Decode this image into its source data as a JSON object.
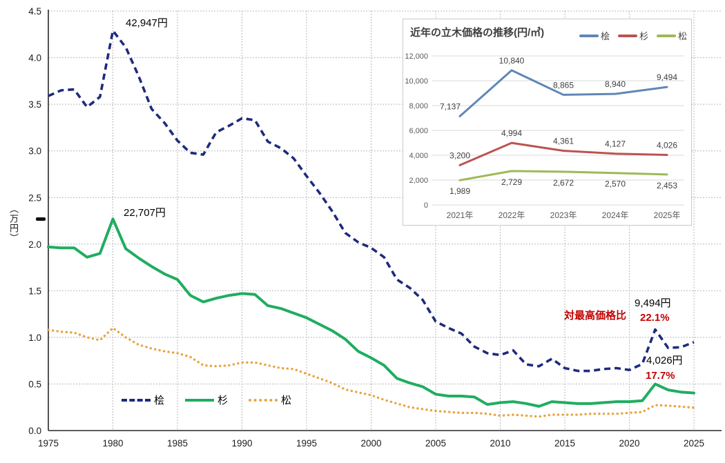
{
  "chart_data": [
    {
      "type": "line",
      "title": "",
      "ylabel": "（万円）",
      "xlabel": "",
      "ylim": [
        0,
        4.5
      ],
      "xlim": [
        1975,
        2025
      ],
      "grid": "dotted",
      "legend_position": "bottom-left-inside",
      "x_ticks": [
        "1975",
        "1980",
        "1985",
        "1990",
        "1995",
        "2000",
        "2005",
        "2010",
        "2015",
        "2020",
        "2025"
      ],
      "y_ticks": [
        "0.0",
        "0.5",
        "1.0",
        "1.5",
        "2.0",
        "2.5",
        "3.0",
        "3.5",
        "4.0",
        "4.5"
      ],
      "x_start_year": 1975,
      "series": [
        {
          "name": "桧",
          "style": "dashed",
          "color": "#1e2a7e",
          "values": [
            3.59,
            3.65,
            3.66,
            3.47,
            3.58,
            4.29,
            4.11,
            3.8,
            3.45,
            3.3,
            3.11,
            2.98,
            2.96,
            3.2,
            3.27,
            3.35,
            3.33,
            3.1,
            3.03,
            2.92,
            2.73,
            2.55,
            2.35,
            2.12,
            2.02,
            1.96,
            1.86,
            1.62,
            1.53,
            1.4,
            1.17,
            1.1,
            1.04,
            0.9,
            0.83,
            0.81,
            0.86,
            0.71,
            0.69,
            0.77,
            0.67,
            0.64,
            0.64,
            0.66,
            0.67,
            0.65,
            0.714,
            1.084,
            0.887,
            0.894,
            0.949
          ]
        },
        {
          "name": "杉",
          "style": "solid",
          "color": "#1fad60",
          "values": [
            1.97,
            1.96,
            1.96,
            1.86,
            1.9,
            2.27,
            1.95,
            1.85,
            1.76,
            1.68,
            1.62,
            1.45,
            1.38,
            1.42,
            1.45,
            1.47,
            1.46,
            1.34,
            1.31,
            1.26,
            1.21,
            1.14,
            1.07,
            0.98,
            0.85,
            0.78,
            0.7,
            0.56,
            0.51,
            0.47,
            0.39,
            0.37,
            0.37,
            0.36,
            0.28,
            0.3,
            0.31,
            0.29,
            0.26,
            0.31,
            0.3,
            0.29,
            0.29,
            0.3,
            0.31,
            0.31,
            0.32,
            0.499,
            0.436,
            0.413,
            0.403
          ]
        },
        {
          "name": "松",
          "style": "dotted",
          "color": "#e8a33d",
          "values": [
            1.08,
            1.06,
            1.05,
            1.0,
            0.97,
            1.1,
            1.0,
            0.92,
            0.88,
            0.85,
            0.83,
            0.79,
            0.7,
            0.69,
            0.7,
            0.73,
            0.73,
            0.7,
            0.67,
            0.66,
            0.61,
            0.56,
            0.51,
            0.44,
            0.41,
            0.38,
            0.33,
            0.29,
            0.25,
            0.23,
            0.21,
            0.2,
            0.19,
            0.19,
            0.18,
            0.16,
            0.17,
            0.16,
            0.15,
            0.17,
            0.17,
            0.17,
            0.18,
            0.18,
            0.18,
            0.19,
            0.199,
            0.273,
            0.267,
            0.257,
            0.245
          ]
        }
      ],
      "annotations": {
        "hinoki_peak": "42,947円",
        "sugi_peak": "22,707円",
        "ratio_header": "対最高価格比",
        "hinoki_now": "9,494円",
        "hinoki_ratio": "22.1%",
        "sugi_now": "4,026円",
        "sugi_ratio": "17.7%",
        "ratio_color": "#c00000"
      }
    },
    {
      "type": "line",
      "title": "近年の立木価格の推移(円/㎥)",
      "categories": [
        "2021年",
        "2022年",
        "2023年",
        "2024年",
        "2025年"
      ],
      "ylim": [
        0,
        12000
      ],
      "y_ticks": [
        "0",
        "2,000",
        "4,000",
        "6,000",
        "8,000",
        "10,000",
        "12,000"
      ],
      "grid": "horizontal-solid",
      "legend_position": "top-right",
      "series": [
        {
          "name": "桧",
          "color": "#5f87b5",
          "label_side": "above",
          "values": [
            7137,
            10840,
            8865,
            8940,
            9494
          ],
          "labels": [
            "7,137",
            "10,840",
            "8,865",
            "8,940",
            "9,494"
          ]
        },
        {
          "name": "杉",
          "color": "#bc5350",
          "label_side": "above",
          "values": [
            3200,
            4994,
            4361,
            4127,
            4026
          ],
          "labels": [
            "3,200",
            "4,994",
            "4,361",
            "4,127",
            "4,026"
          ]
        },
        {
          "name": "松",
          "color": "#9dba55",
          "label_side": "below",
          "values": [
            1989,
            2729,
            2672,
            2570,
            2453
          ],
          "labels": [
            "1,989",
            "2,729",
            "2,672",
            "2,570",
            "2,453"
          ]
        }
      ]
    }
  ]
}
